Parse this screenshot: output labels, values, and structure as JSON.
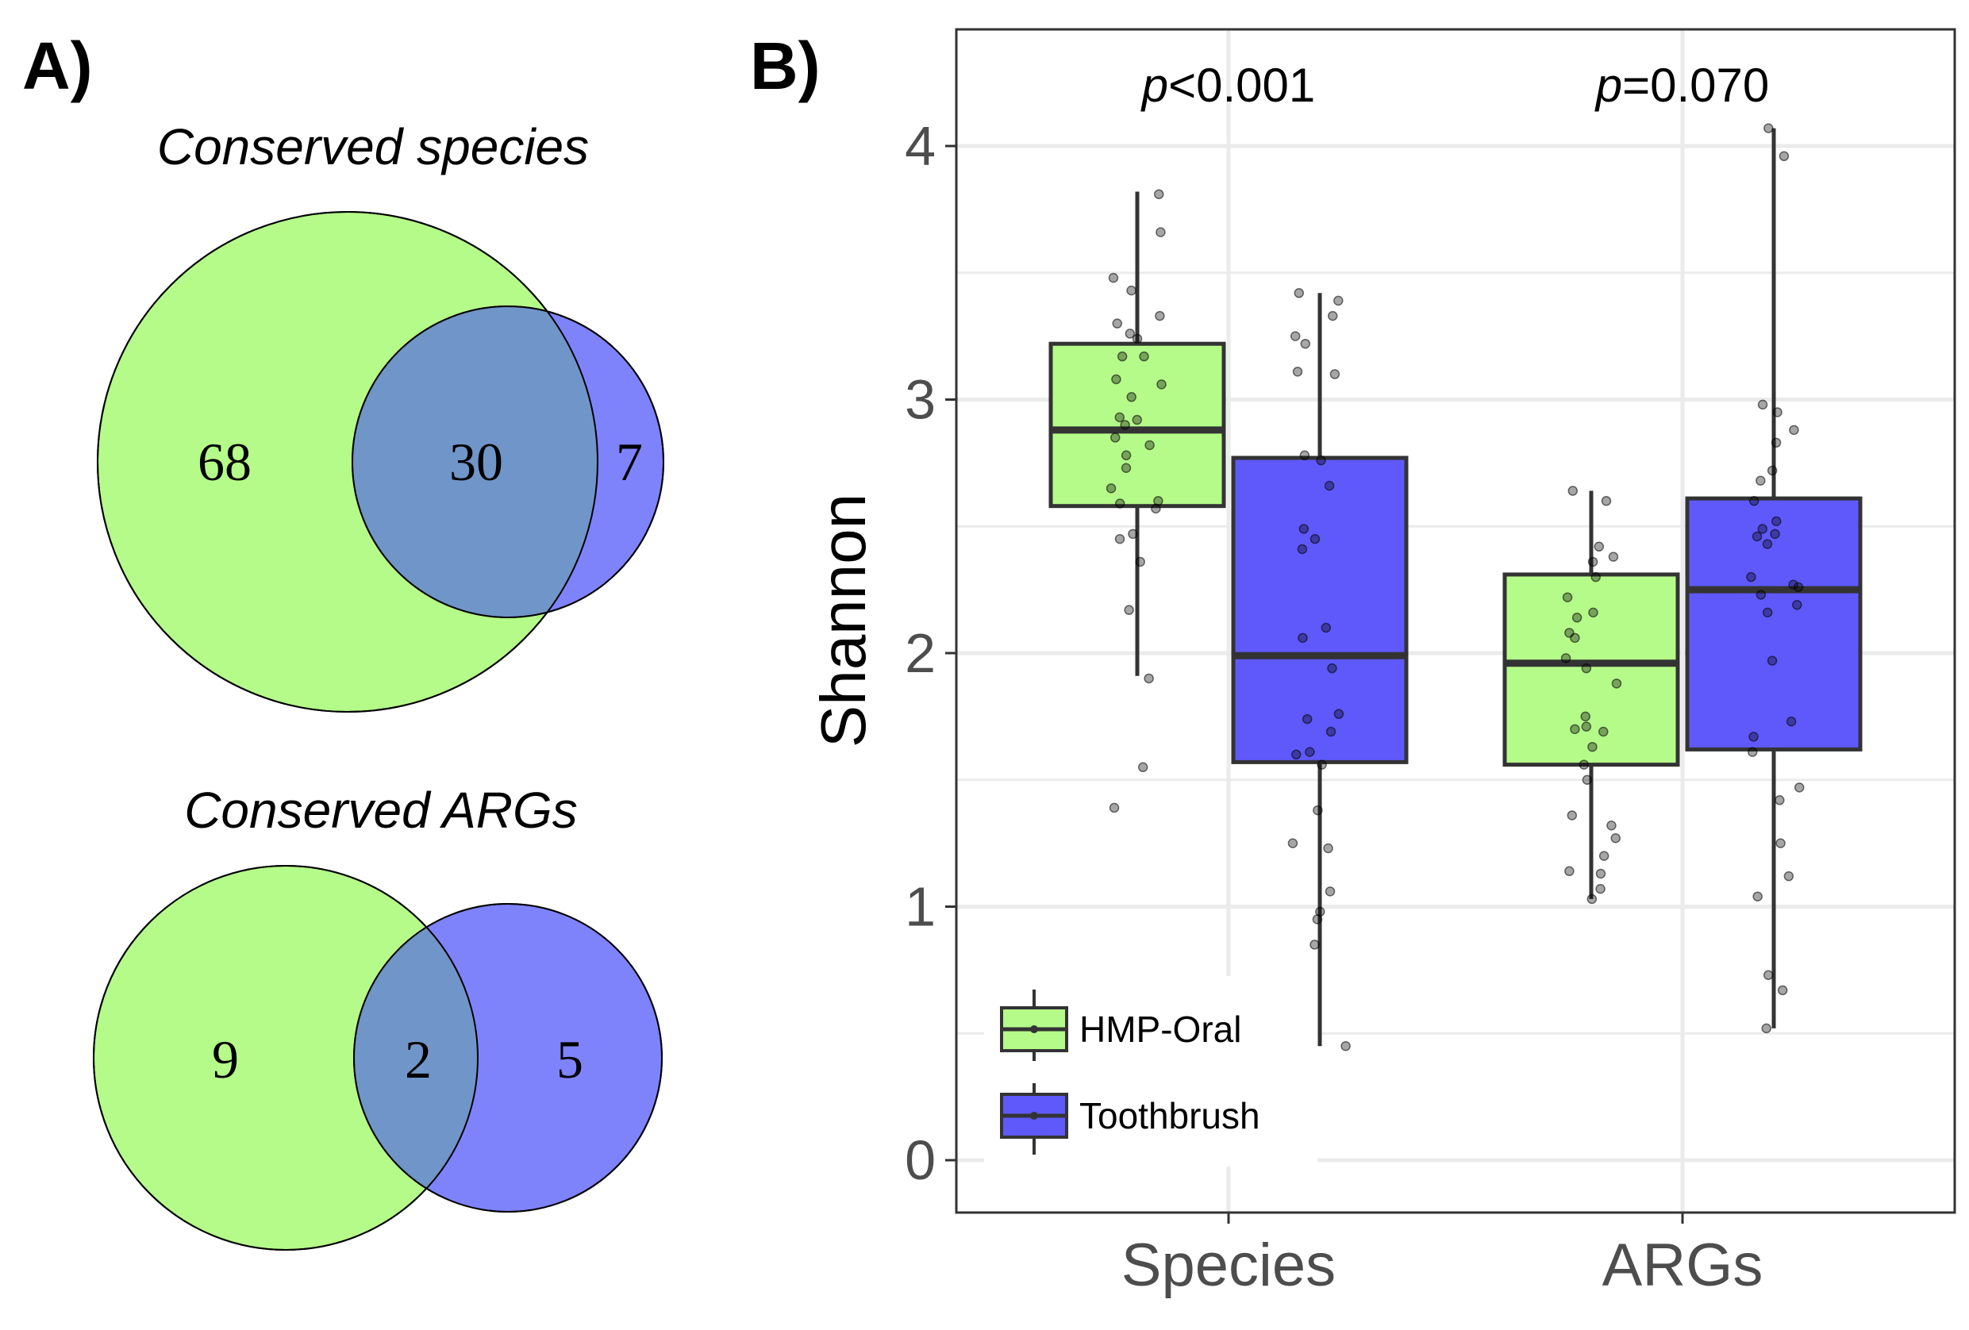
{
  "panels": {
    "a_label": "A)",
    "b_label": "B)"
  },
  "venn": [
    {
      "title": "Conserved species",
      "left_only": "68",
      "overlap": "30",
      "right_only": "7",
      "left_color": "#b5fb8a",
      "right_color": "#7f83fb",
      "overlap_color": "#7095c8"
    },
    {
      "title": "Conserved ARGs",
      "left_only": "9",
      "overlap": "2",
      "right_only": "5",
      "left_color": "#b5fb8a",
      "right_color": "#7f83fb",
      "overlap_color": "#7095c8"
    }
  ],
  "chart_data": {
    "type": "boxplot",
    "ylabel": "Shannon",
    "ylim": [
      -0.2,
      4.45
    ],
    "yticks": [
      "0",
      "1",
      "2",
      "3",
      "4"
    ],
    "categories": [
      "Species",
      "ARGs"
    ],
    "grid": true,
    "legend_position": "bottom-left",
    "annotations": [
      {
        "category": "Species",
        "p_symbol": "p",
        "p_rest": "<0.001"
      },
      {
        "category": "ARGs",
        "p_symbol": "p",
        "p_rest": "=0.070"
      }
    ],
    "series": [
      {
        "name": "HMP-Oral",
        "color": "#b5fb8a",
        "boxes": [
          {
            "category": "Species",
            "q1": 2.58,
            "median": 2.88,
            "q3": 3.22,
            "whisker_low": 1.91,
            "whisker_high": 3.82,
            "points": [
              3.81,
              3.66,
              3.48,
              3.43,
              3.33,
              3.3,
              3.26,
              3.24,
              3.17,
              3.17,
              3.08,
              3.06,
              3.01,
              2.93,
              2.92,
              2.9,
              2.85,
              2.82,
              2.78,
              2.73,
              2.65,
              2.6,
              2.59,
              2.57,
              2.47,
              2.45,
              2.36,
              2.17,
              1.9,
              1.55,
              1.39
            ]
          },
          {
            "category": "ARGs",
            "q1": 1.56,
            "median": 1.96,
            "q3": 2.31,
            "whisker_low": 1.03,
            "whisker_high": 2.64,
            "points": [
              2.64,
              2.6,
              2.42,
              2.38,
              2.36,
              2.3,
              2.22,
              2.16,
              2.14,
              2.08,
              2.06,
              1.98,
              1.94,
              1.88,
              1.75,
              1.71,
              1.7,
              1.69,
              1.63,
              1.56,
              1.5,
              1.36,
              1.32,
              1.27,
              1.2,
              1.14,
              1.13,
              1.07,
              1.03
            ]
          }
        ]
      },
      {
        "name": "Toothbrush",
        "color": "#5f59fb",
        "boxes": [
          {
            "category": "Species",
            "q1": 1.57,
            "median": 1.99,
            "q3": 2.77,
            "whisker_low": 0.45,
            "whisker_high": 3.42,
            "points": [
              3.42,
              3.39,
              3.33,
              3.25,
              3.22,
              3.11,
              3.1,
              2.78,
              2.76,
              2.66,
              2.49,
              2.45,
              2.41,
              2.1,
              2.06,
              1.94,
              1.76,
              1.74,
              1.69,
              1.61,
              1.6,
              1.56,
              1.38,
              1.25,
              1.23,
              1.06,
              0.98,
              0.95,
              0.85,
              0.45
            ]
          },
          {
            "category": "ARGs",
            "q1": 1.62,
            "median": 2.25,
            "q3": 2.61,
            "whisker_low": 0.52,
            "whisker_high": 4.07,
            "points": [
              4.07,
              3.96,
              2.98,
              2.95,
              2.88,
              2.83,
              2.72,
              2.68,
              2.6,
              2.52,
              2.49,
              2.47,
              2.46,
              2.43,
              2.3,
              2.27,
              2.26,
              2.23,
              2.19,
              2.16,
              1.97,
              1.73,
              1.67,
              1.61,
              1.47,
              1.42,
              1.25,
              1.12,
              1.04,
              0.73,
              0.67,
              0.52
            ]
          }
        ]
      }
    ]
  }
}
